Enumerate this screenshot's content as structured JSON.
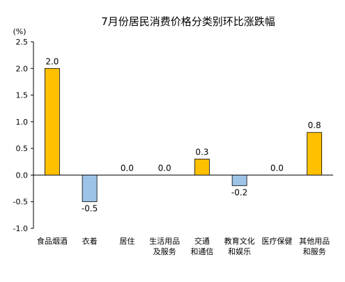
{
  "chart_data": {
    "type": "bar",
    "title": "7月份居民消费价格分类别环比涨跌幅",
    "ylabel": "(%)",
    "xlabel": "",
    "ylim": [
      -1.0,
      2.5
    ],
    "yticks": [
      "2.5",
      "2.0",
      "1.5",
      "1.0",
      "0.5",
      "0.0",
      "-0.5",
      "-1.0"
    ],
    "ytick_values": [
      2.5,
      2.0,
      1.5,
      1.0,
      0.5,
      0.0,
      -0.5,
      -1.0
    ],
    "categories": [
      [
        "食品烟酒"
      ],
      [
        "衣着"
      ],
      [
        "居住"
      ],
      [
        "生活用品",
        "及服务"
      ],
      [
        "交通",
        "和通信"
      ],
      [
        "教育文化",
        "和娱乐"
      ],
      [
        "医疗保健"
      ],
      [
        "其他用品",
        "和服务"
      ]
    ],
    "values": [
      2.0,
      -0.5,
      0.0,
      0.0,
      0.3,
      -0.2,
      0.0,
      0.8
    ],
    "value_labels": [
      "2.0",
      "-0.5",
      "0.0",
      "0.0",
      "0.3",
      "-0.2",
      "0.0",
      "0.8"
    ],
    "grid": false,
    "colors": {
      "positive": "#FFC000",
      "positive_stroke": "#000000",
      "negative": "#9DC3E6",
      "negative_stroke": "#000000",
      "axis": "#000000"
    }
  }
}
